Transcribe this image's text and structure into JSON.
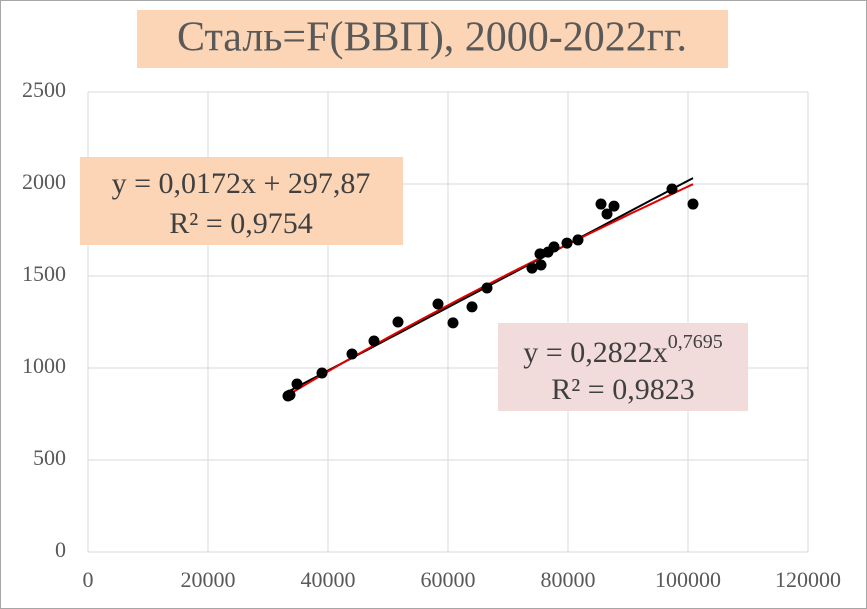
{
  "chart_data": {
    "type": "scatter",
    "title": "Сталь=F(ВВП), 2000-2022гг.",
    "x": [
      33333,
      33667,
      34833,
      39000,
      44000,
      47667,
      51667,
      58333,
      60833,
      64000,
      66500,
      74000,
      75333,
      75500,
      76667,
      77667,
      79833,
      81667,
      85500,
      86500,
      87667,
      97333,
      100833
    ],
    "y": [
      848,
      853,
      913,
      973,
      1076,
      1147,
      1250,
      1348,
      1245,
      1332,
      1435,
      1543,
      1620,
      1560,
      1630,
      1658,
      1679,
      1696,
      1891,
      1837,
      1880,
      1973,
      1891
    ],
    "color": "#000000",
    "xlim": [
      0,
      120000
    ],
    "xticks": [
      0,
      20000,
      40000,
      60000,
      80000,
      100000,
      120000
    ],
    "ylim": [
      0,
      2500
    ],
    "yticks": [
      0,
      500,
      1000,
      1500,
      2000,
      2500
    ],
    "grid": true,
    "trendlines": [
      {
        "kind": "linear",
        "color": "#000000",
        "equation": "y = 0,0172x + 297,87",
        "r2": "R² = 0,9754",
        "coefficients": [
          0.0172,
          297.87
        ]
      },
      {
        "kind": "power",
        "color": "#e00000",
        "equation": "y = 0,2822x",
        "exponent": "0,7695",
        "r2": "R² = 0,9823",
        "coefficients": [
          0.2822,
          0.7695
        ]
      }
    ]
  }
}
